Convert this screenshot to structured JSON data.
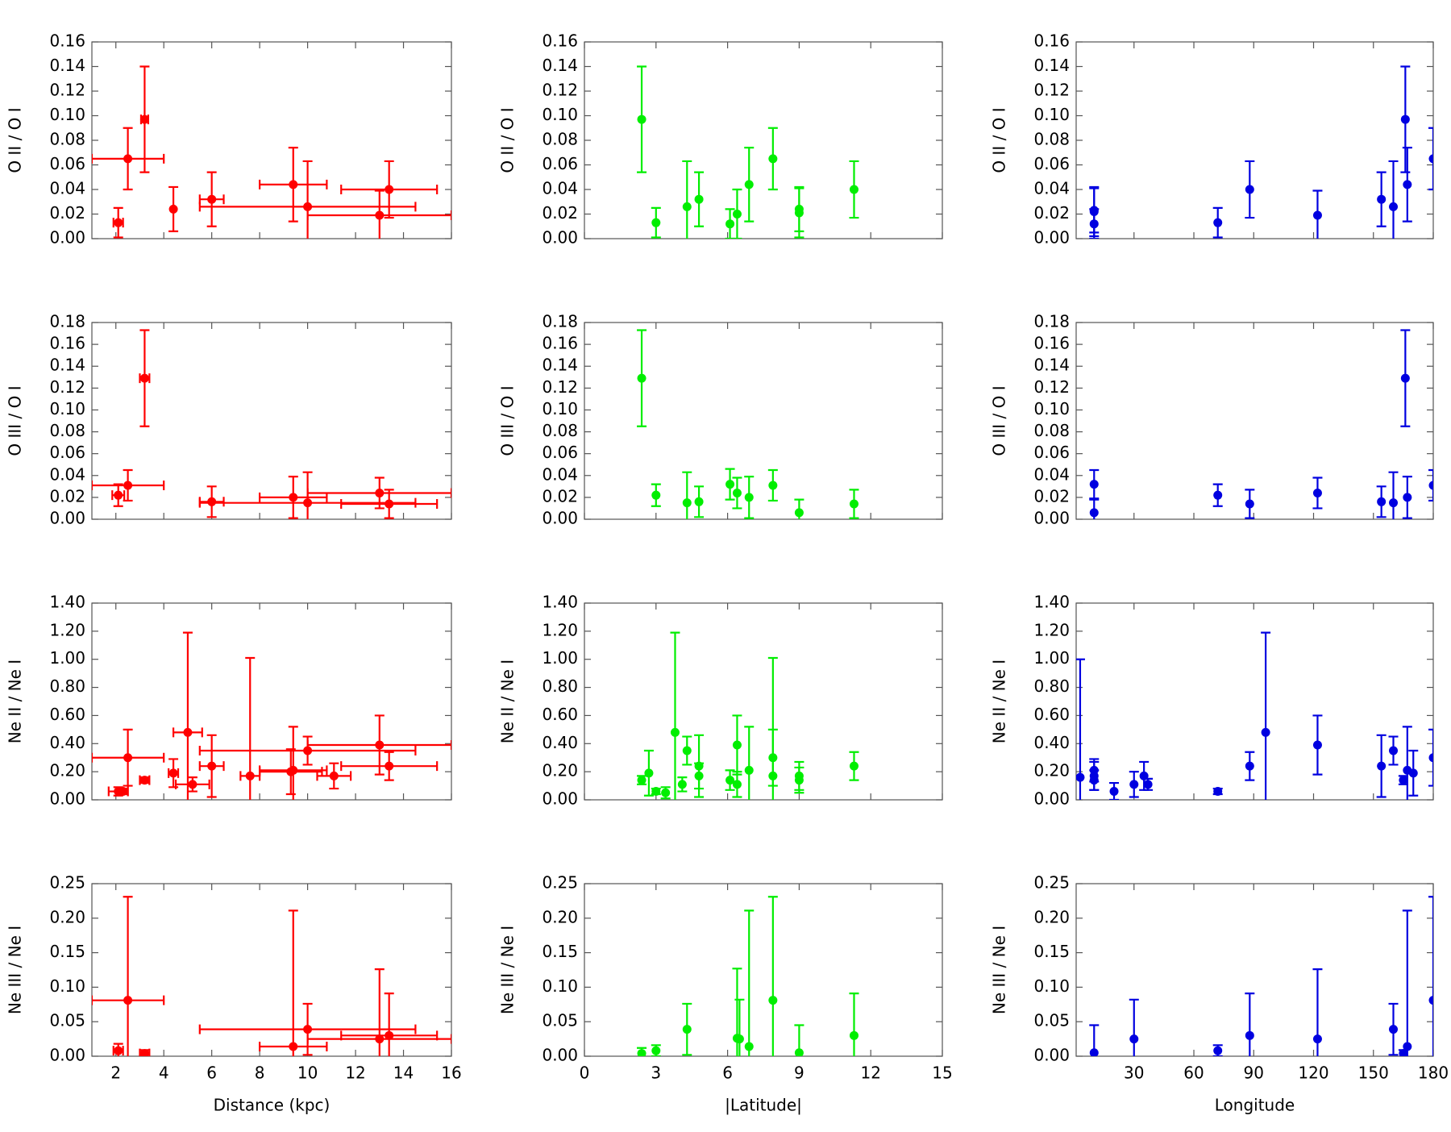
{
  "chart_data": [
    {
      "type": "scatter",
      "ylabel": "O II / O I",
      "color": "#ff0000",
      "x": [
        2.1,
        2.5,
        3.2,
        4.4,
        6.0,
        9.4,
        10.0,
        13.0,
        13.4
      ],
      "y": [
        0.013,
        0.065,
        0.097,
        0.024,
        0.032,
        0.044,
        0.026,
        0.019,
        0.04
      ],
      "xerr": [
        0.2,
        1.5,
        0.15,
        0,
        0.5,
        1.4,
        4.5,
        3.0,
        2.0
      ],
      "yerr": [
        0.012,
        0.025,
        0.043,
        0.018,
        0.022,
        0.03,
        0.037,
        0.02,
        0.023
      ],
      "xlim": [
        1,
        16
      ],
      "xticks": [
        2,
        4,
        6,
        8,
        10,
        12,
        14,
        16
      ],
      "ylim": [
        0,
        0.16
      ],
      "yticks": [
        {
          "value": 0,
          "label": "0.00"
        },
        {
          "value": 0.02,
          "label": "0.02"
        },
        {
          "value": 0.04,
          "label": "0.04"
        },
        {
          "value": 0.06,
          "label": "0.06"
        },
        {
          "value": 0.08,
          "label": "0.08"
        },
        {
          "value": 0.1,
          "label": "0.10"
        },
        {
          "value": 0.12,
          "label": "0.12"
        },
        {
          "value": 0.14,
          "label": "0.14"
        },
        {
          "value": 0.16,
          "label": "0.16"
        }
      ]
    },
    {
      "type": "scatter",
      "ylabel": "O II / O I",
      "color": "#00ee00",
      "x": [
        2.4,
        3.0,
        4.3,
        4.8,
        6.1,
        6.4,
        6.9,
        7.9,
        9.0,
        9.0,
        11.3
      ],
      "y": [
        0.097,
        0.013,
        0.026,
        0.032,
        0.012,
        0.02,
        0.044,
        0.065,
        0.024,
        0.021,
        0.04
      ],
      "yerr": [
        0.043,
        0.012,
        0.037,
        0.022,
        0.012,
        0.02,
        0.03,
        0.025,
        0.018,
        0.02,
        0.023
      ],
      "xlim": [
        0,
        15
      ],
      "xticks": [
        0,
        3,
        6,
        9,
        12,
        15
      ],
      "ylim": [
        0,
        0.16
      ],
      "yticks": [
        {
          "value": 0,
          "label": "0.00"
        },
        {
          "value": 0.02,
          "label": "0.02"
        },
        {
          "value": 0.04,
          "label": "0.04"
        },
        {
          "value": 0.06,
          "label": "0.06"
        },
        {
          "value": 0.08,
          "label": "0.08"
        },
        {
          "value": 0.1,
          "label": "0.10"
        },
        {
          "value": 0.12,
          "label": "0.12"
        },
        {
          "value": 0.14,
          "label": "0.14"
        },
        {
          "value": 0.16,
          "label": "0.16"
        }
      ]
    },
    {
      "type": "scatter",
      "ylabel": "O II / O I",
      "color": "#0000e0",
      "x": [
        10,
        10,
        10,
        72,
        88,
        122,
        154,
        160,
        166,
        167,
        180
      ],
      "y": [
        0.023,
        0.022,
        0.012,
        0.013,
        0.04,
        0.019,
        0.032,
        0.026,
        0.097,
        0.044,
        0.065
      ],
      "yerr": [
        0.018,
        0.02,
        0.012,
        0.012,
        0.023,
        0.02,
        0.022,
        0.037,
        0.043,
        0.03,
        0.025
      ],
      "xlim": [
        1,
        180
      ],
      "xticks": [
        30,
        60,
        90,
        120,
        150,
        180
      ],
      "ylim": [
        0,
        0.16
      ],
      "yticks": [
        {
          "value": 0,
          "label": "0.00"
        },
        {
          "value": 0.02,
          "label": "0.02"
        },
        {
          "value": 0.04,
          "label": "0.04"
        },
        {
          "value": 0.06,
          "label": "0.06"
        },
        {
          "value": 0.08,
          "label": "0.08"
        },
        {
          "value": 0.1,
          "label": "0.10"
        },
        {
          "value": 0.12,
          "label": "0.12"
        },
        {
          "value": 0.14,
          "label": "0.14"
        },
        {
          "value": 0.16,
          "label": "0.16"
        }
      ]
    },
    {
      "type": "scatter",
      "ylabel": "O III / O I",
      "color": "#ff0000",
      "x": [
        2.1,
        2.5,
        3.2,
        6.0,
        9.4,
        10.0,
        13.0,
        13.4
      ],
      "y": [
        0.022,
        0.031,
        0.129,
        0.016,
        0.02,
        0.015,
        0.024,
        0.014
      ],
      "xerr": [
        0.25,
        1.5,
        0.2,
        0.5,
        1.4,
        4.5,
        3.0,
        2.0
      ],
      "yerr": [
        0.01,
        0.014,
        0.044,
        0.014,
        0.019,
        0.028,
        0.014,
        0.013
      ],
      "xlim": [
        1,
        16
      ],
      "xticks": [
        2,
        4,
        6,
        8,
        10,
        12,
        14,
        16
      ],
      "ylim": [
        0,
        0.18
      ],
      "yticks": [
        {
          "value": 0,
          "label": "0.00"
        },
        {
          "value": 0.02,
          "label": "0.02"
        },
        {
          "value": 0.04,
          "label": "0.04"
        },
        {
          "value": 0.06,
          "label": "0.06"
        },
        {
          "value": 0.08,
          "label": "0.08"
        },
        {
          "value": 0.1,
          "label": "0.10"
        },
        {
          "value": 0.12,
          "label": "0.12"
        },
        {
          "value": 0.14,
          "label": "0.14"
        },
        {
          "value": 0.16,
          "label": "0.16"
        },
        {
          "value": 0.18,
          "label": "0.18"
        }
      ]
    },
    {
      "type": "scatter",
      "ylabel": "O III / O I",
      "color": "#00ee00",
      "x": [
        2.4,
        3.0,
        4.3,
        4.8,
        6.1,
        6.4,
        6.9,
        7.9,
        9.0,
        11.3
      ],
      "y": [
        0.129,
        0.022,
        0.015,
        0.016,
        0.032,
        0.024,
        0.02,
        0.031,
        0.006,
        0.014
      ],
      "yerr": [
        0.044,
        0.01,
        0.028,
        0.014,
        0.014,
        0.014,
        0.019,
        0.014,
        0.012,
        0.013
      ],
      "xlim": [
        0,
        15
      ],
      "xticks": [
        0,
        3,
        6,
        9,
        12,
        15
      ],
      "ylim": [
        0,
        0.18
      ],
      "yticks": [
        {
          "value": 0,
          "label": "0.00"
        },
        {
          "value": 0.02,
          "label": "0.02"
        },
        {
          "value": 0.04,
          "label": "0.04"
        },
        {
          "value": 0.06,
          "label": "0.06"
        },
        {
          "value": 0.08,
          "label": "0.08"
        },
        {
          "value": 0.1,
          "label": "0.10"
        },
        {
          "value": 0.12,
          "label": "0.12"
        },
        {
          "value": 0.14,
          "label": "0.14"
        },
        {
          "value": 0.16,
          "label": "0.16"
        },
        {
          "value": 0.18,
          "label": "0.18"
        }
      ]
    },
    {
      "type": "scatter",
      "ylabel": "O III / O I",
      "color": "#0000e0",
      "x": [
        10,
        10,
        72,
        88,
        122,
        154,
        160,
        166,
        167,
        180
      ],
      "y": [
        0.032,
        0.006,
        0.022,
        0.014,
        0.024,
        0.016,
        0.015,
        0.129,
        0.02,
        0.031
      ],
      "yerr": [
        0.013,
        0.012,
        0.01,
        0.013,
        0.014,
        0.014,
        0.028,
        0.044,
        0.019,
        0.014
      ],
      "xlim": [
        1,
        180
      ],
      "xticks": [
        30,
        60,
        90,
        120,
        150,
        180
      ],
      "ylim": [
        0,
        0.18
      ],
      "yticks": [
        {
          "value": 0,
          "label": "0.00"
        },
        {
          "value": 0.02,
          "label": "0.02"
        },
        {
          "value": 0.04,
          "label": "0.04"
        },
        {
          "value": 0.06,
          "label": "0.06"
        },
        {
          "value": 0.08,
          "label": "0.08"
        },
        {
          "value": 0.1,
          "label": "0.10"
        },
        {
          "value": 0.12,
          "label": "0.12"
        },
        {
          "value": 0.14,
          "label": "0.14"
        },
        {
          "value": 0.16,
          "label": "0.16"
        },
        {
          "value": 0.18,
          "label": "0.18"
        }
      ]
    },
    {
      "type": "scatter",
      "ylabel": "Ne II / Ne I",
      "color": "#ff0000",
      "x": [
        2.1,
        2.3,
        2.5,
        3.2,
        4.4,
        5.0,
        5.2,
        6.0,
        7.6,
        9.3,
        9.4,
        10.0,
        11.1,
        13.0,
        13.4
      ],
      "y": [
        0.06,
        0.06,
        0.3,
        0.14,
        0.19,
        0.48,
        0.11,
        0.24,
        0.17,
        0.2,
        0.21,
        0.35,
        0.17,
        0.39,
        0.24
      ],
      "xerr": [
        0.4,
        0.2,
        1.5,
        0.2,
        0.2,
        0.6,
        0.7,
        0.5,
        0.4,
        1.3,
        1.4,
        4.5,
        0.7,
        3.0,
        2.0
      ],
      "yerr": [
        0.03,
        0.02,
        0.2,
        0.02,
        0.1,
        0.71,
        0.05,
        0.22,
        0.84,
        0.16,
        0.31,
        0.1,
        0.09,
        0.21,
        0.1
      ],
      "xlim": [
        1,
        16
      ],
      "xticks": [
        2,
        4,
        6,
        8,
        10,
        12,
        14,
        16
      ],
      "ylim": [
        0,
        1.4
      ],
      "yticks": [
        {
          "value": 0,
          "label": "0.00"
        },
        {
          "value": 0.2,
          "label": "0.20"
        },
        {
          "value": 0.4,
          "label": "0.40"
        },
        {
          "value": 0.6,
          "label": "0.60"
        },
        {
          "value": 0.8,
          "label": "0.80"
        },
        {
          "value": 1,
          "label": "1.00"
        },
        {
          "value": 1.2,
          "label": "1.20"
        },
        {
          "value": 1.4,
          "label": "1.40"
        }
      ]
    },
    {
      "type": "scatter",
      "ylabel": "Ne II / Ne I",
      "color": "#00ee00",
      "x": [
        2.4,
        2.7,
        3.0,
        3.4,
        3.8,
        4.1,
        4.3,
        4.8,
        4.8,
        6.1,
        6.4,
        6.4,
        6.9,
        7.9,
        7.9,
        9.0,
        9.0,
        11.3
      ],
      "y": [
        0.14,
        0.19,
        0.06,
        0.05,
        0.48,
        0.11,
        0.35,
        0.24,
        0.17,
        0.14,
        0.39,
        0.11,
        0.21,
        0.3,
        0.17,
        0.17,
        0.14,
        0.24
      ],
      "yerr": [
        0.03,
        0.16,
        0.02,
        0.04,
        0.71,
        0.05,
        0.1,
        0.22,
        0.09,
        0.07,
        0.21,
        0.09,
        0.31,
        0.2,
        0.84,
        0.1,
        0.09,
        0.1
      ],
      "xlim": [
        0,
        15
      ],
      "xticks": [
        0,
        3,
        6,
        9,
        12,
        15
      ],
      "ylim": [
        0,
        1.4
      ],
      "yticks": [
        {
          "value": 0,
          "label": "0.00"
        },
        {
          "value": 0.2,
          "label": "0.20"
        },
        {
          "value": 0.4,
          "label": "0.40"
        },
        {
          "value": 0.6,
          "label": "0.60"
        },
        {
          "value": 0.8,
          "label": "0.80"
        },
        {
          "value": 1,
          "label": "1.00"
        },
        {
          "value": 1.2,
          "label": "1.20"
        },
        {
          "value": 1.4,
          "label": "1.40"
        }
      ]
    },
    {
      "type": "scatter",
      "ylabel": "Ne II / Ne I",
      "color": "#0000e0",
      "x": [
        3,
        10,
        10,
        10,
        20,
        30,
        35,
        37,
        72,
        88,
        96,
        122,
        154,
        160,
        165,
        167,
        170,
        180
      ],
      "y": [
        0.16,
        0.21,
        0.17,
        0.14,
        0.06,
        0.11,
        0.17,
        0.11,
        0.06,
        0.24,
        0.48,
        0.39,
        0.24,
        0.35,
        0.14,
        0.21,
        0.19,
        0.3
      ],
      "yerr": [
        0.84,
        0.08,
        0.1,
        0.07,
        0.06,
        0.09,
        0.1,
        0.04,
        0.02,
        0.1,
        0.71,
        0.21,
        0.22,
        0.1,
        0.03,
        0.31,
        0.16,
        0.2
      ],
      "xlim": [
        1,
        180
      ],
      "xticks": [
        30,
        60,
        90,
        120,
        150,
        180
      ],
      "ylim": [
        0,
        1.4
      ],
      "yticks": [
        {
          "value": 0,
          "label": "0.00"
        },
        {
          "value": 0.2,
          "label": "0.20"
        },
        {
          "value": 0.4,
          "label": "0.40"
        },
        {
          "value": 0.6,
          "label": "0.60"
        },
        {
          "value": 0.8,
          "label": "0.80"
        },
        {
          "value": 1,
          "label": "1.00"
        },
        {
          "value": 1.2,
          "label": "1.20"
        },
        {
          "value": 1.4,
          "label": "1.40"
        }
      ]
    },
    {
      "type": "scatter",
      "ylabel": "Ne III / Ne I",
      "xlabel": "Distance (kpc)",
      "color": "#ff0000",
      "x": [
        2.1,
        2.5,
        3.2,
        9.4,
        10.0,
        13.0,
        13.4
      ],
      "y": [
        0.008,
        0.081,
        0.004,
        0.014,
        0.039,
        0.025,
        0.03
      ],
      "xerr": [
        0.2,
        1.5,
        0.2,
        1.4,
        4.5,
        3.0,
        2.0
      ],
      "yerr": [
        0.01,
        0.15,
        0.005,
        0.197,
        0.037,
        0.101,
        0.061
      ],
      "xlim": [
        1,
        16
      ],
      "xticks": [
        2,
        4,
        6,
        8,
        10,
        12,
        14,
        16
      ],
      "ylim": [
        0,
        0.25
      ],
      "yticks": [
        {
          "value": 0,
          "label": "0.00"
        },
        {
          "value": 0.05,
          "label": "0.05"
        },
        {
          "value": 0.1,
          "label": "0.10"
        },
        {
          "value": 0.15,
          "label": "0.15"
        },
        {
          "value": 0.2,
          "label": "0.20"
        },
        {
          "value": 0.25,
          "label": "0.25"
        }
      ]
    },
    {
      "type": "scatter",
      "ylabel": "Ne III / Ne I",
      "xlabel": "|Latitude|",
      "color": "#00ee00",
      "x": [
        2.4,
        3.0,
        4.3,
        6.4,
        6.5,
        6.9,
        7.9,
        9.0,
        11.3
      ],
      "y": [
        0.004,
        0.008,
        0.039,
        0.026,
        0.025,
        0.014,
        0.081,
        0.005,
        0.03
      ],
      "yerr": [
        0.008,
        0.008,
        0.037,
        0.101,
        0.057,
        0.197,
        0.15,
        0.04,
        0.061
      ],
      "xlim": [
        0,
        15
      ],
      "xticks": [
        0,
        3,
        6,
        9,
        12,
        15
      ],
      "ylim": [
        0,
        0.25
      ],
      "yticks": [
        {
          "value": 0,
          "label": "0.00"
        },
        {
          "value": 0.05,
          "label": "0.05"
        },
        {
          "value": 0.1,
          "label": "0.10"
        },
        {
          "value": 0.15,
          "label": "0.15"
        },
        {
          "value": 0.2,
          "label": "0.20"
        },
        {
          "value": 0.25,
          "label": "0.25"
        }
      ]
    },
    {
      "type": "scatter",
      "ylabel": "Ne III / Ne I",
      "xlabel": "Longitude",
      "color": "#0000e0",
      "x": [
        10,
        30,
        72,
        88,
        122,
        160,
        165,
        167,
        180
      ],
      "y": [
        0.005,
        0.025,
        0.008,
        0.03,
        0.025,
        0.039,
        0.004,
        0.014,
        0.081
      ],
      "yerr": [
        0.04,
        0.057,
        0.008,
        0.061,
        0.101,
        0.037,
        0.005,
        0.197,
        0.15
      ],
      "xlim": [
        1,
        180
      ],
      "xticks": [
        30,
        60,
        90,
        120,
        150,
        180
      ],
      "ylim": [
        0,
        0.25
      ],
      "yticks": [
        {
          "value": 0,
          "label": "0.00"
        },
        {
          "value": 0.05,
          "label": "0.05"
        },
        {
          "value": 0.1,
          "label": "0.10"
        },
        {
          "value": 0.15,
          "label": "0.15"
        },
        {
          "value": 0.2,
          "label": "0.20"
        },
        {
          "value": 0.25,
          "label": "0.25"
        }
      ]
    }
  ]
}
